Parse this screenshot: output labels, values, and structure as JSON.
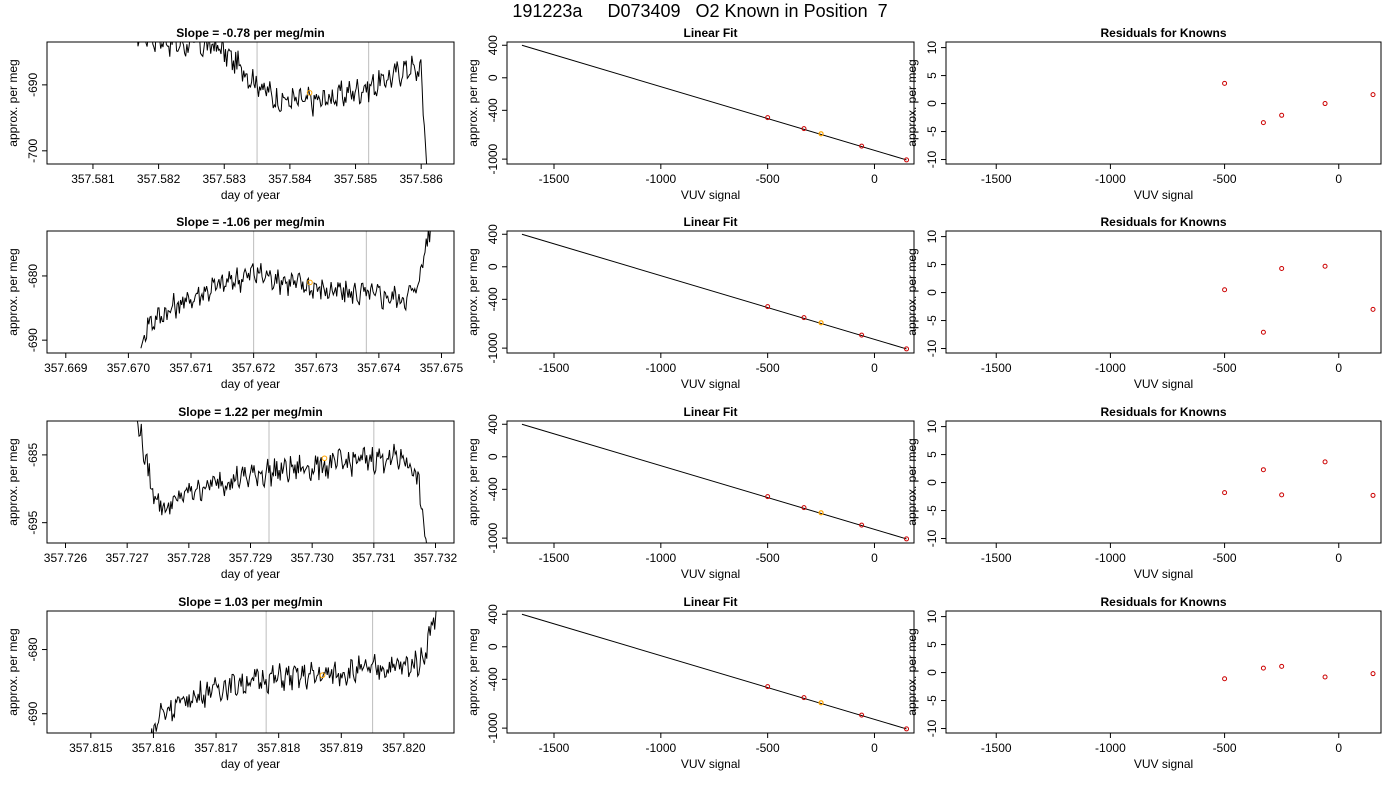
{
  "figure_title": "191223a     D073409   O2 Known in Position  7",
  "colors": {
    "trace": "#000000",
    "marker": "#FFA500",
    "knowns": "#CC0000",
    "fit_line": "#000000",
    "vline": "#BEBEBE"
  },
  "chart_data": [
    {
      "type": "line",
      "row": 0,
      "title": "Slope =  -0.78  per meg/min",
      "xlabel": "day of year",
      "ylabel": "approx. per meg",
      "xlim": [
        357.5803,
        357.5865
      ],
      "ylim": [
        -702,
        -683.5
      ],
      "xticks": [
        "357.581",
        "357.582",
        "357.583",
        "357.584",
        "357.585",
        "357.586"
      ],
      "xtick_values": [
        357.581,
        357.582,
        357.583,
        357.584,
        357.585,
        357.586
      ],
      "yticks": [
        "-690",
        "-700"
      ],
      "ytick_values": [
        -690,
        -700
      ],
      "vlines": [
        357.5835,
        357.5852
      ],
      "trace_start": 357.5816,
      "trace_end": 357.5861,
      "trace_profile": [
        [
          357.5816,
          -682
        ],
        [
          357.5823,
          -683.8
        ],
        [
          357.5829,
          -684.2
        ],
        [
          357.5834,
          -688.8
        ],
        [
          357.5838,
          -692.3
        ],
        [
          357.5844,
          -692.5
        ],
        [
          357.5848,
          -691.5
        ],
        [
          357.5853,
          -690
        ],
        [
          357.5858,
          -687.4
        ],
        [
          357.586,
          -688
        ],
        [
          357.5861,
          -705
        ]
      ],
      "marker": {
        "x": 357.5843,
        "y": -691.2
      }
    },
    {
      "type": "line",
      "row": 1,
      "title": "Slope =  -1.06  per meg/min",
      "xlabel": "day of year",
      "ylabel": "approx. per meg",
      "xlim": [
        357.6687,
        357.6752
      ],
      "ylim": [
        -692,
        -673
      ],
      "xticks": [
        "357.669",
        "357.670",
        "357.671",
        "357.672",
        "357.673",
        "357.674",
        "357.675"
      ],
      "xtick_values": [
        357.669,
        357.67,
        357.671,
        357.672,
        357.673,
        357.674,
        357.675
      ],
      "yticks": [
        "-680",
        "-690"
      ],
      "ytick_values": [
        -680,
        -690
      ],
      "vlines": [
        357.672,
        357.6738
      ],
      "trace_start": 357.6702,
      "trace_end": 357.6749,
      "trace_profile": [
        [
          357.6701,
          -695
        ],
        [
          357.6703,
          -687.5
        ],
        [
          357.6707,
          -685
        ],
        [
          357.6713,
          -682
        ],
        [
          357.672,
          -679.5
        ],
        [
          357.6726,
          -681
        ],
        [
          357.6733,
          -682.5
        ],
        [
          357.6738,
          -682.8
        ],
        [
          357.6744,
          -683.5
        ],
        [
          357.6746,
          -682
        ],
        [
          357.6749,
          -669
        ]
      ],
      "marker": {
        "x": 357.6729,
        "y": -681
      }
    },
    {
      "type": "line",
      "row": 2,
      "title": "Slope =  1.22  per meg/min",
      "xlabel": "day of year",
      "ylabel": "approx. per meg",
      "xlim": [
        357.7257,
        357.7323
      ],
      "ylim": [
        -698,
        -680
      ],
      "xticks": [
        "357.726",
        "357.727",
        "357.728",
        "357.729",
        "357.730",
        "357.731",
        "357.732"
      ],
      "xtick_values": [
        357.726,
        357.727,
        357.728,
        357.729,
        357.73,
        357.731,
        357.732
      ],
      "yticks": [
        "-685",
        "-695"
      ],
      "ytick_values": [
        -685,
        -695
      ],
      "vlines": [
        357.7293,
        357.731
      ],
      "trace_start": 357.7271,
      "trace_end": 357.7319,
      "trace_profile": [
        [
          357.7271,
          -677
        ],
        [
          357.7274,
          -690
        ],
        [
          357.7276,
          -693
        ],
        [
          357.728,
          -690.5
        ],
        [
          357.7285,
          -689
        ],
        [
          357.7293,
          -687.5
        ],
        [
          357.7303,
          -686.5
        ],
        [
          357.731,
          -685.5
        ],
        [
          357.7315,
          -685.5
        ],
        [
          357.7317,
          -688
        ],
        [
          357.7319,
          -701
        ]
      ],
      "marker": {
        "x": 357.7302,
        "y": -685.5
      }
    },
    {
      "type": "line",
      "row": 3,
      "title": "Slope =  1.03  per meg/min",
      "xlabel": "day of year",
      "ylabel": "approx. per meg",
      "xlim": [
        357.8143,
        357.8208
      ],
      "ylim": [
        -693,
        -674
      ],
      "xticks": [
        "357.815",
        "357.816",
        "357.817",
        "357.818",
        "357.819",
        "357.820"
      ],
      "xtick_values": [
        357.815,
        357.816,
        357.817,
        357.818,
        357.819,
        357.82
      ],
      "yticks": [
        "-680",
        "-690"
      ],
      "ytick_values": [
        -680,
        -690
      ],
      "vlines": [
        357.8178,
        357.8195
      ],
      "trace_start": 357.8159,
      "trace_end": 357.8206,
      "trace_profile": [
        [
          357.8159,
          -696
        ],
        [
          357.8161,
          -690
        ],
        [
          357.8165,
          -688
        ],
        [
          357.817,
          -686
        ],
        [
          357.8178,
          -684.5
        ],
        [
          357.8187,
          -684
        ],
        [
          357.8195,
          -683
        ],
        [
          357.8201,
          -682.5
        ],
        [
          357.8203,
          -681.5
        ],
        [
          357.8206,
          -671
        ]
      ],
      "marker": {
        "x": 357.8187,
        "y": -684
      }
    },
    {
      "type": "line",
      "row": 0,
      "title": "Linear Fit",
      "xlabel": "VUV signal",
      "ylabel": "approx. per meg",
      "xlim": [
        -1720,
        185
      ],
      "ylim": [
        -1060,
        440
      ],
      "xticks": [
        "-1500",
        "-1000",
        "-500",
        "0"
      ],
      "xtick_values": [
        -1500,
        -1000,
        -500,
        0
      ],
      "yticks": [
        "400",
        "0",
        "-400",
        "-1000"
      ],
      "ytick_values": [
        400,
        0,
        -400,
        -1000
      ],
      "fit_line": [
        [
          -1650,
          400
        ],
        [
          150,
          -1010
        ]
      ],
      "knowns": [
        [
          -500,
          -490
        ],
        [
          -330,
          -625
        ],
        [
          -60,
          -840
        ],
        [
          150,
          -1010
        ]
      ],
      "marker": [
        -250,
        -688
      ]
    },
    {
      "type": "line",
      "row": 1,
      "title": "Linear Fit",
      "xlabel": "VUV signal",
      "ylabel": "approx. per meg",
      "xlim": [
        -1720,
        185
      ],
      "ylim": [
        -1060,
        440
      ],
      "xticks": [
        "-1500",
        "-1000",
        "-500",
        "0"
      ],
      "xtick_values": [
        -1500,
        -1000,
        -500,
        0
      ],
      "yticks": [
        "400",
        "0",
        "-400",
        "-1000"
      ],
      "ytick_values": [
        400,
        0,
        -400,
        -1000
      ],
      "fit_line": [
        [
          -1650,
          400
        ],
        [
          150,
          -1010
        ]
      ],
      "knowns": [
        [
          -500,
          -490
        ],
        [
          -330,
          -625
        ],
        [
          -60,
          -840
        ],
        [
          150,
          -1010
        ]
      ],
      "marker": [
        -250,
        -688
      ]
    },
    {
      "type": "line",
      "row": 2,
      "title": "Linear Fit",
      "xlabel": "VUV signal",
      "ylabel": "approx. per meg",
      "xlim": [
        -1720,
        185
      ],
      "ylim": [
        -1060,
        440
      ],
      "xticks": [
        "-1500",
        "-1000",
        "-500",
        "0"
      ],
      "xtick_values": [
        -1500,
        -1000,
        -500,
        0
      ],
      "yticks": [
        "400",
        "0",
        "-400",
        "-1000"
      ],
      "ytick_values": [
        400,
        0,
        -400,
        -1000
      ],
      "fit_line": [
        [
          -1650,
          400
        ],
        [
          150,
          -1010
        ]
      ],
      "knowns": [
        [
          -500,
          -490
        ],
        [
          -330,
          -625
        ],
        [
          -60,
          -840
        ],
        [
          150,
          -1010
        ]
      ],
      "marker": [
        -250,
        -688
      ]
    },
    {
      "type": "line",
      "row": 3,
      "title": "Linear Fit",
      "xlabel": "VUV signal",
      "ylabel": "approx. per meg",
      "xlim": [
        -1720,
        185
      ],
      "ylim": [
        -1060,
        440
      ],
      "xticks": [
        "-1500",
        "-1000",
        "-500",
        "0"
      ],
      "xtick_values": [
        -1500,
        -1000,
        -500,
        0
      ],
      "yticks": [
        "400",
        "0",
        "-400",
        "-1000"
      ],
      "ytick_values": [
        400,
        0,
        -400,
        -1000
      ],
      "fit_line": [
        [
          -1650,
          400
        ],
        [
          150,
          -1010
        ]
      ],
      "knowns": [
        [
          -500,
          -490
        ],
        [
          -330,
          -625
        ],
        [
          -60,
          -840
        ],
        [
          150,
          -1010
        ]
      ],
      "marker": [
        -250,
        -688
      ]
    },
    {
      "type": "scatter",
      "row": 0,
      "title": "Residuals for Knowns",
      "xlabel": "VUV signal",
      "ylabel": "approx. per meg",
      "xlim": [
        -1720,
        185
      ],
      "ylim": [
        -10.8,
        11
      ],
      "xticks": [
        "-1500",
        "-1000",
        "-500",
        "0"
      ],
      "xtick_values": [
        -1500,
        -1000,
        -500,
        0
      ],
      "yticks": [
        "10",
        "5",
        "0",
        "-5",
        "-10"
      ],
      "ytick_values": [
        10,
        5,
        0,
        -5,
        -10
      ],
      "points": [
        [
          -500,
          3.6
        ],
        [
          -330,
          -3.4
        ],
        [
          -250,
          -2.1
        ],
        [
          -60,
          0
        ],
        [
          150,
          1.6
        ]
      ]
    },
    {
      "type": "scatter",
      "row": 1,
      "title": "Residuals for Knowns",
      "xlabel": "VUV signal",
      "ylabel": "approx. per meg",
      "xlim": [
        -1720,
        185
      ],
      "ylim": [
        -10.8,
        11
      ],
      "xticks": [
        "-1500",
        "-1000",
        "-500",
        "0"
      ],
      "xtick_values": [
        -1500,
        -1000,
        -500,
        0
      ],
      "yticks": [
        "10",
        "5",
        "0",
        "-5",
        "-10"
      ],
      "ytick_values": [
        10,
        5,
        0,
        -5,
        -10
      ],
      "points": [
        [
          -500,
          0.5
        ],
        [
          -330,
          -7.1
        ],
        [
          -250,
          4.3
        ],
        [
          -60,
          4.7
        ],
        [
          150,
          -3
        ]
      ]
    },
    {
      "type": "scatter",
      "row": 2,
      "title": "Residuals for Knowns",
      "xlabel": "VUV signal",
      "ylabel": "approx. per meg",
      "xlim": [
        -1720,
        185
      ],
      "ylim": [
        -10.8,
        11
      ],
      "xticks": [
        "-1500",
        "-1000",
        "-500",
        "0"
      ],
      "xtick_values": [
        -1500,
        -1000,
        -500,
        0
      ],
      "yticks": [
        "10",
        "5",
        "0",
        "-5",
        "-10"
      ],
      "ytick_values": [
        10,
        5,
        0,
        -5,
        -10
      ],
      "points": [
        [
          -500,
          -1.8
        ],
        [
          -330,
          2.3
        ],
        [
          -250,
          -2.2
        ],
        [
          -60,
          3.7
        ],
        [
          150,
          -2.3
        ]
      ]
    },
    {
      "type": "scatter",
      "row": 3,
      "title": "Residuals for Knowns",
      "xlabel": "VUV signal",
      "ylabel": "approx. per meg",
      "xlim": [
        -1720,
        185
      ],
      "ylim": [
        -10.8,
        11
      ],
      "xticks": [
        "-1500",
        "-1000",
        "-500",
        "0"
      ],
      "xtick_values": [
        -1500,
        -1000,
        -500,
        0
      ],
      "yticks": [
        "10",
        "5",
        "0",
        "-5",
        "-10"
      ],
      "ytick_values": [
        10,
        5,
        0,
        -5,
        -10
      ],
      "points": [
        [
          -500,
          -1.1
        ],
        [
          -330,
          0.8
        ],
        [
          -250,
          1.1
        ],
        [
          -60,
          -0.8
        ],
        [
          150,
          -0.2
        ]
      ]
    }
  ]
}
